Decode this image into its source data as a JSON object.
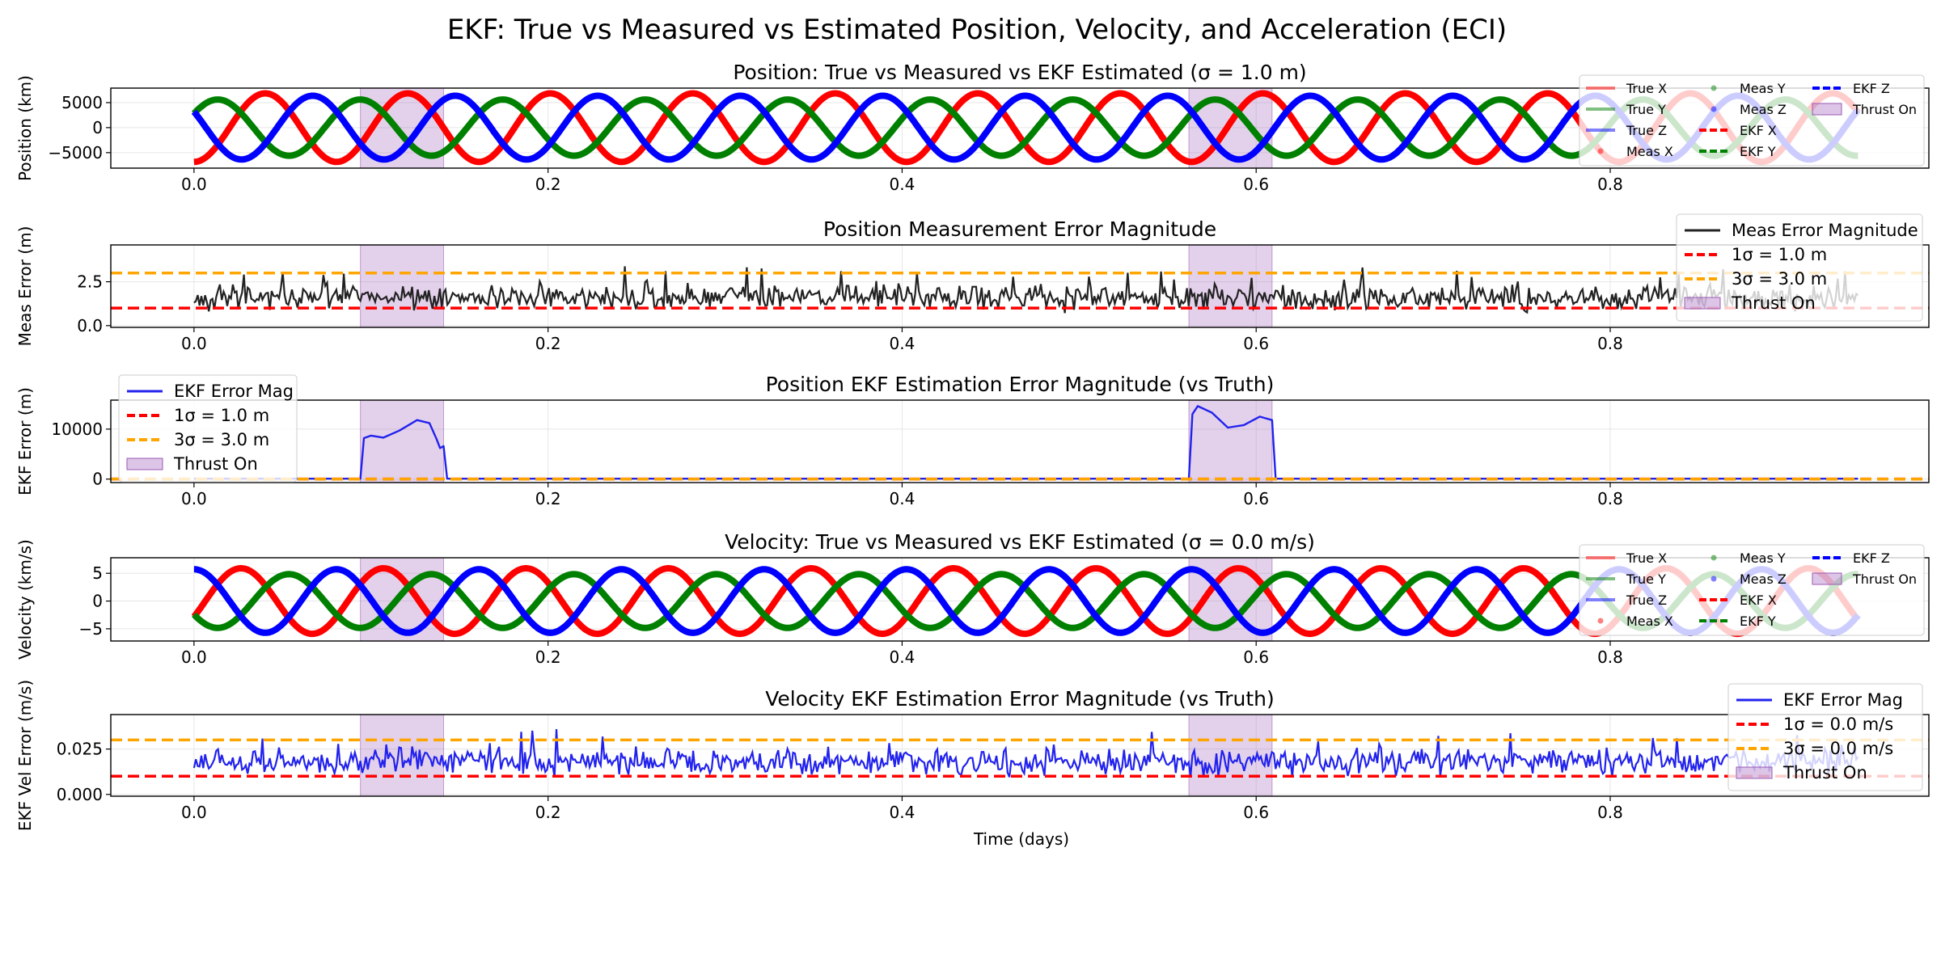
{
  "suptitle": "EKF: True vs Measured vs Estimated Position, Velocity, and Acceleration (ECI)",
  "xlabel": "Time (days)",
  "x_ticks": [
    "0.0",
    "0.2",
    "0.4",
    "0.6",
    "0.8"
  ],
  "colors": {
    "x": "#ff0000",
    "y": "#008000",
    "z": "#0000ff",
    "meas_error": "#222222",
    "ekf_error": "#2222ee",
    "sigma1": "#ff0000",
    "sigma3": "#ffa500",
    "thrust": "#9b59b6"
  },
  "chart_data": [
    {
      "id": "position",
      "type": "line",
      "title": "Position: True vs Measured vs EKF Estimated (σ = 1.0 m)",
      "ylabel": "Position (km)",
      "xlim": [
        -0.047,
        0.98
      ],
      "ylim": [
        -8100,
        7900
      ],
      "y_ticks": [
        -5000,
        0,
        5000
      ],
      "y_tick_labels": [
        "−5000",
        "0",
        "5000"
      ],
      "grid": true,
      "thrust_windows": [
        [
          0.094,
          0.141
        ],
        [
          0.562,
          0.609
        ]
      ],
      "legend": {
        "position": "top-right",
        "columns": 3,
        "entries": [
          "True X",
          "True Y",
          "True Z",
          "Meas X",
          "Meas Y",
          "Meas Z",
          "EKF X",
          "EKF Y",
          "EKF Z",
          "Thrust On"
        ]
      },
      "signal": {
        "amplitude": 6850,
        "period": 0.0805,
        "t_end": 0.94,
        "components": [
          {
            "name": "X",
            "color_key": "x",
            "phase": -1.5708,
            "amp_scale": 1.0
          },
          {
            "name": "Y",
            "color_key": "y",
            "phase": 0.5236,
            "amp_scale": 0.82
          },
          {
            "name": "Z",
            "color_key": "z",
            "phase": 2.618,
            "amp_scale": 0.93
          }
        ]
      }
    },
    {
      "id": "meas_error",
      "type": "line",
      "title": "Position Measurement Error Magnitude",
      "ylabel": "Meas Error (m)",
      "xlim": [
        -0.047,
        0.98
      ],
      "ylim": [
        -0.1,
        4.6
      ],
      "y_ticks": [
        0.0,
        2.5
      ],
      "y_tick_labels": [
        "0.0",
        "2.5"
      ],
      "grid": true,
      "thrust_windows": [
        [
          0.094,
          0.141
        ],
        [
          0.562,
          0.609
        ]
      ],
      "legend": {
        "position": "top-right",
        "columns": 1,
        "entries": [
          "Meas Error Magnitude",
          "1σ = 1.0 m",
          "3σ = 3.0 m",
          "Thrust On"
        ]
      },
      "hlines": [
        {
          "value": 1.0,
          "color_key": "sigma1"
        },
        {
          "value": 3.0,
          "color_key": "sigma3"
        }
      ],
      "noise": {
        "mean": 1.6,
        "spread": 0.55,
        "max": 4.4,
        "min": 0.2,
        "t_end": 0.94,
        "n": 900
      }
    },
    {
      "id": "ekf_pos_error",
      "type": "line",
      "title": "Position EKF Estimation Error Magnitude (vs Truth)",
      "ylabel": "EKF Error (m)",
      "xlim": [
        -0.047,
        0.98
      ],
      "ylim": [
        -700,
        15800
      ],
      "y_ticks": [
        0,
        10000
      ],
      "y_tick_labels": [
        "0",
        "10000"
      ],
      "grid": true,
      "thrust_windows": [
        [
          0.094,
          0.141
        ],
        [
          0.562,
          0.609
        ]
      ],
      "legend": {
        "position": "top-left",
        "columns": 1,
        "entries": [
          "EKF Error Mag",
          "1σ = 1.0 m",
          "3σ = 3.0 m",
          "Thrust On"
        ]
      },
      "hlines": [
        {
          "value": 1.0,
          "color_key": "sigma1"
        },
        {
          "value": 3.0,
          "color_key": "sigma3"
        }
      ],
      "bumps": [
        {
          "start": 0.094,
          "end": 0.141,
          "points": [
            [
              0.094,
              0
            ],
            [
              0.096,
              8200
            ],
            [
              0.1,
              8700
            ],
            [
              0.107,
              8300
            ],
            [
              0.116,
              9700
            ],
            [
              0.126,
              11800
            ],
            [
              0.133,
              11200
            ],
            [
              0.137,
              8000
            ],
            [
              0.139,
              6200
            ],
            [
              0.141,
              6600
            ],
            [
              0.143,
              0
            ]
          ]
        },
        {
          "start": 0.562,
          "end": 0.609,
          "points": [
            [
              0.562,
              0
            ],
            [
              0.564,
              13000
            ],
            [
              0.567,
              14600
            ],
            [
              0.575,
              13300
            ],
            [
              0.584,
              10300
            ],
            [
              0.593,
              10800
            ],
            [
              0.602,
              12500
            ],
            [
              0.607,
              12000
            ],
            [
              0.609,
              11800
            ],
            [
              0.611,
              0
            ]
          ]
        }
      ],
      "baseline": {
        "value": 80,
        "t_end": 0.94
      }
    },
    {
      "id": "velocity",
      "type": "line",
      "title": "Velocity: True vs Measured vs EKF Estimated (σ = 0.0 m/s)",
      "ylabel": "Velocity (km/s)",
      "xlim": [
        -0.047,
        0.98
      ],
      "ylim": [
        -7.2,
        7.8
      ],
      "y_ticks": [
        -5,
        0,
        5
      ],
      "y_tick_labels": [
        "−5",
        "0",
        "5"
      ],
      "grid": true,
      "thrust_windows": [
        [
          0.094,
          0.141
        ],
        [
          0.562,
          0.609
        ]
      ],
      "legend": {
        "position": "top-right",
        "columns": 3,
        "entries": [
          "True X",
          "True Y",
          "True Z",
          "Meas X",
          "Meas Y",
          "Meas Z",
          "EKF X",
          "EKF Y",
          "EKF Z",
          "Thrust On"
        ]
      },
      "signal": {
        "amplitude": 5.9,
        "period": 0.0805,
        "t_end": 0.94,
        "components": [
          {
            "name": "X",
            "color_key": "x",
            "phase": -0.5,
            "amp_scale": 1.0
          },
          {
            "name": "Y",
            "color_key": "y",
            "phase": 3.67,
            "amp_scale": 0.82
          },
          {
            "name": "Z",
            "color_key": "z",
            "phase": 1.57,
            "amp_scale": 0.97
          }
        ]
      }
    },
    {
      "id": "ekf_vel_error",
      "type": "line",
      "title": "Velocity EKF Estimation Error Magnitude (vs Truth)",
      "ylabel": "EKF Vel Error (m/s)",
      "xlim": [
        -0.047,
        0.98
      ],
      "ylim": [
        -0.001,
        0.044
      ],
      "y_ticks": [
        0.0,
        0.025
      ],
      "y_tick_labels": [
        "0.000",
        "0.025"
      ],
      "grid": true,
      "thrust_windows": [
        [
          0.094,
          0.141
        ],
        [
          0.562,
          0.609
        ]
      ],
      "legend": {
        "position": "top-right",
        "columns": 1,
        "entries": [
          "EKF Error Mag",
          "1σ = 0.0 m/s",
          "3σ = 0.0 m/s",
          "Thrust On"
        ]
      },
      "hlines": [
        {
          "value": 0.01,
          "color_key": "sigma1"
        },
        {
          "value": 0.03,
          "color_key": "sigma3"
        }
      ],
      "noise": {
        "mean": 0.018,
        "spread": 0.0055,
        "max": 0.04,
        "min": 0.003,
        "t_end": 0.94,
        "n": 900
      }
    }
  ]
}
